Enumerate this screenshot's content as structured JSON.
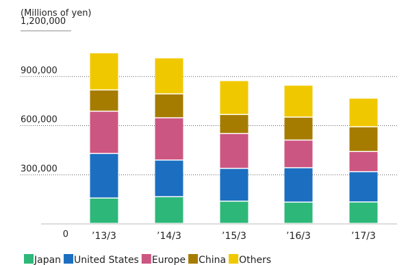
{
  "chart_data": {
    "type": "bar",
    "stacked": true,
    "unit_label": "(Millions of yen)",
    "categories": [
      "’13/3",
      "’14/3",
      "’15/3",
      "’16/3",
      "’17/3"
    ],
    "series": [
      {
        "name": "Japan",
        "color": "#2db87a",
        "values": [
          155000,
          163000,
          136000,
          130000,
          131000
        ]
      },
      {
        "name": "United States",
        "color": "#1c6fc0",
        "values": [
          272000,
          224000,
          200000,
          210000,
          185000
        ]
      },
      {
        "name": "Europe",
        "color": "#cc5682",
        "values": [
          258000,
          258000,
          213000,
          169000,
          123000
        ]
      },
      {
        "name": "China",
        "color": "#a67c00",
        "values": [
          130000,
          146000,
          116000,
          140000,
          151000
        ]
      },
      {
        "name": "Others",
        "color": "#f0c800",
        "values": [
          227000,
          220000,
          207000,
          195000,
          175000
        ]
      }
    ],
    "ylim": [
      0,
      1200000
    ],
    "y_ticks": [
      "0",
      "300,000",
      "600,000",
      "900,000",
      "1,200,000"
    ],
    "grid": true,
    "legend_position": "bottom-left"
  }
}
